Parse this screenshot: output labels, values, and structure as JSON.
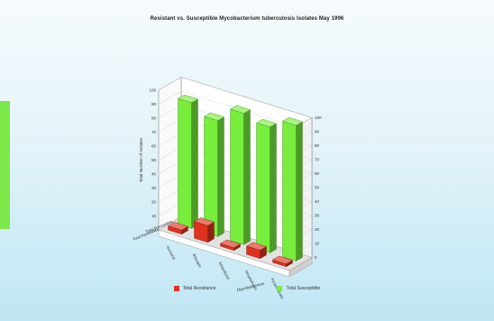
{
  "chart_data": {
    "type": "bar",
    "title": "Resistant vs. Susceptible Mycobacterium tuberculosis Isolates  May 1996",
    "ylabel": "Total Number of Isolates",
    "xlabel": "Mycobacterium",
    "ylim": [
      0,
      100
    ],
    "ytick_step": 10,
    "categories": [
      "Isoniazid",
      "Rifampin",
      "Ethambutol",
      "Streptomycin",
      "Pyrazinamide"
    ],
    "depth_labels": [
      "Total Susceptible",
      "Total Resistance"
    ],
    "series": [
      {
        "name": "Total Resistance",
        "color": "#e0321e",
        "values": [
          3,
          12,
          2,
          6,
          2
        ]
      },
      {
        "name": "Total Susceptible",
        "color": "#77ee3c",
        "values": [
          90,
          83,
          94,
          90,
          97
        ]
      }
    ],
    "legend_position": "bottom",
    "grid": true
  }
}
